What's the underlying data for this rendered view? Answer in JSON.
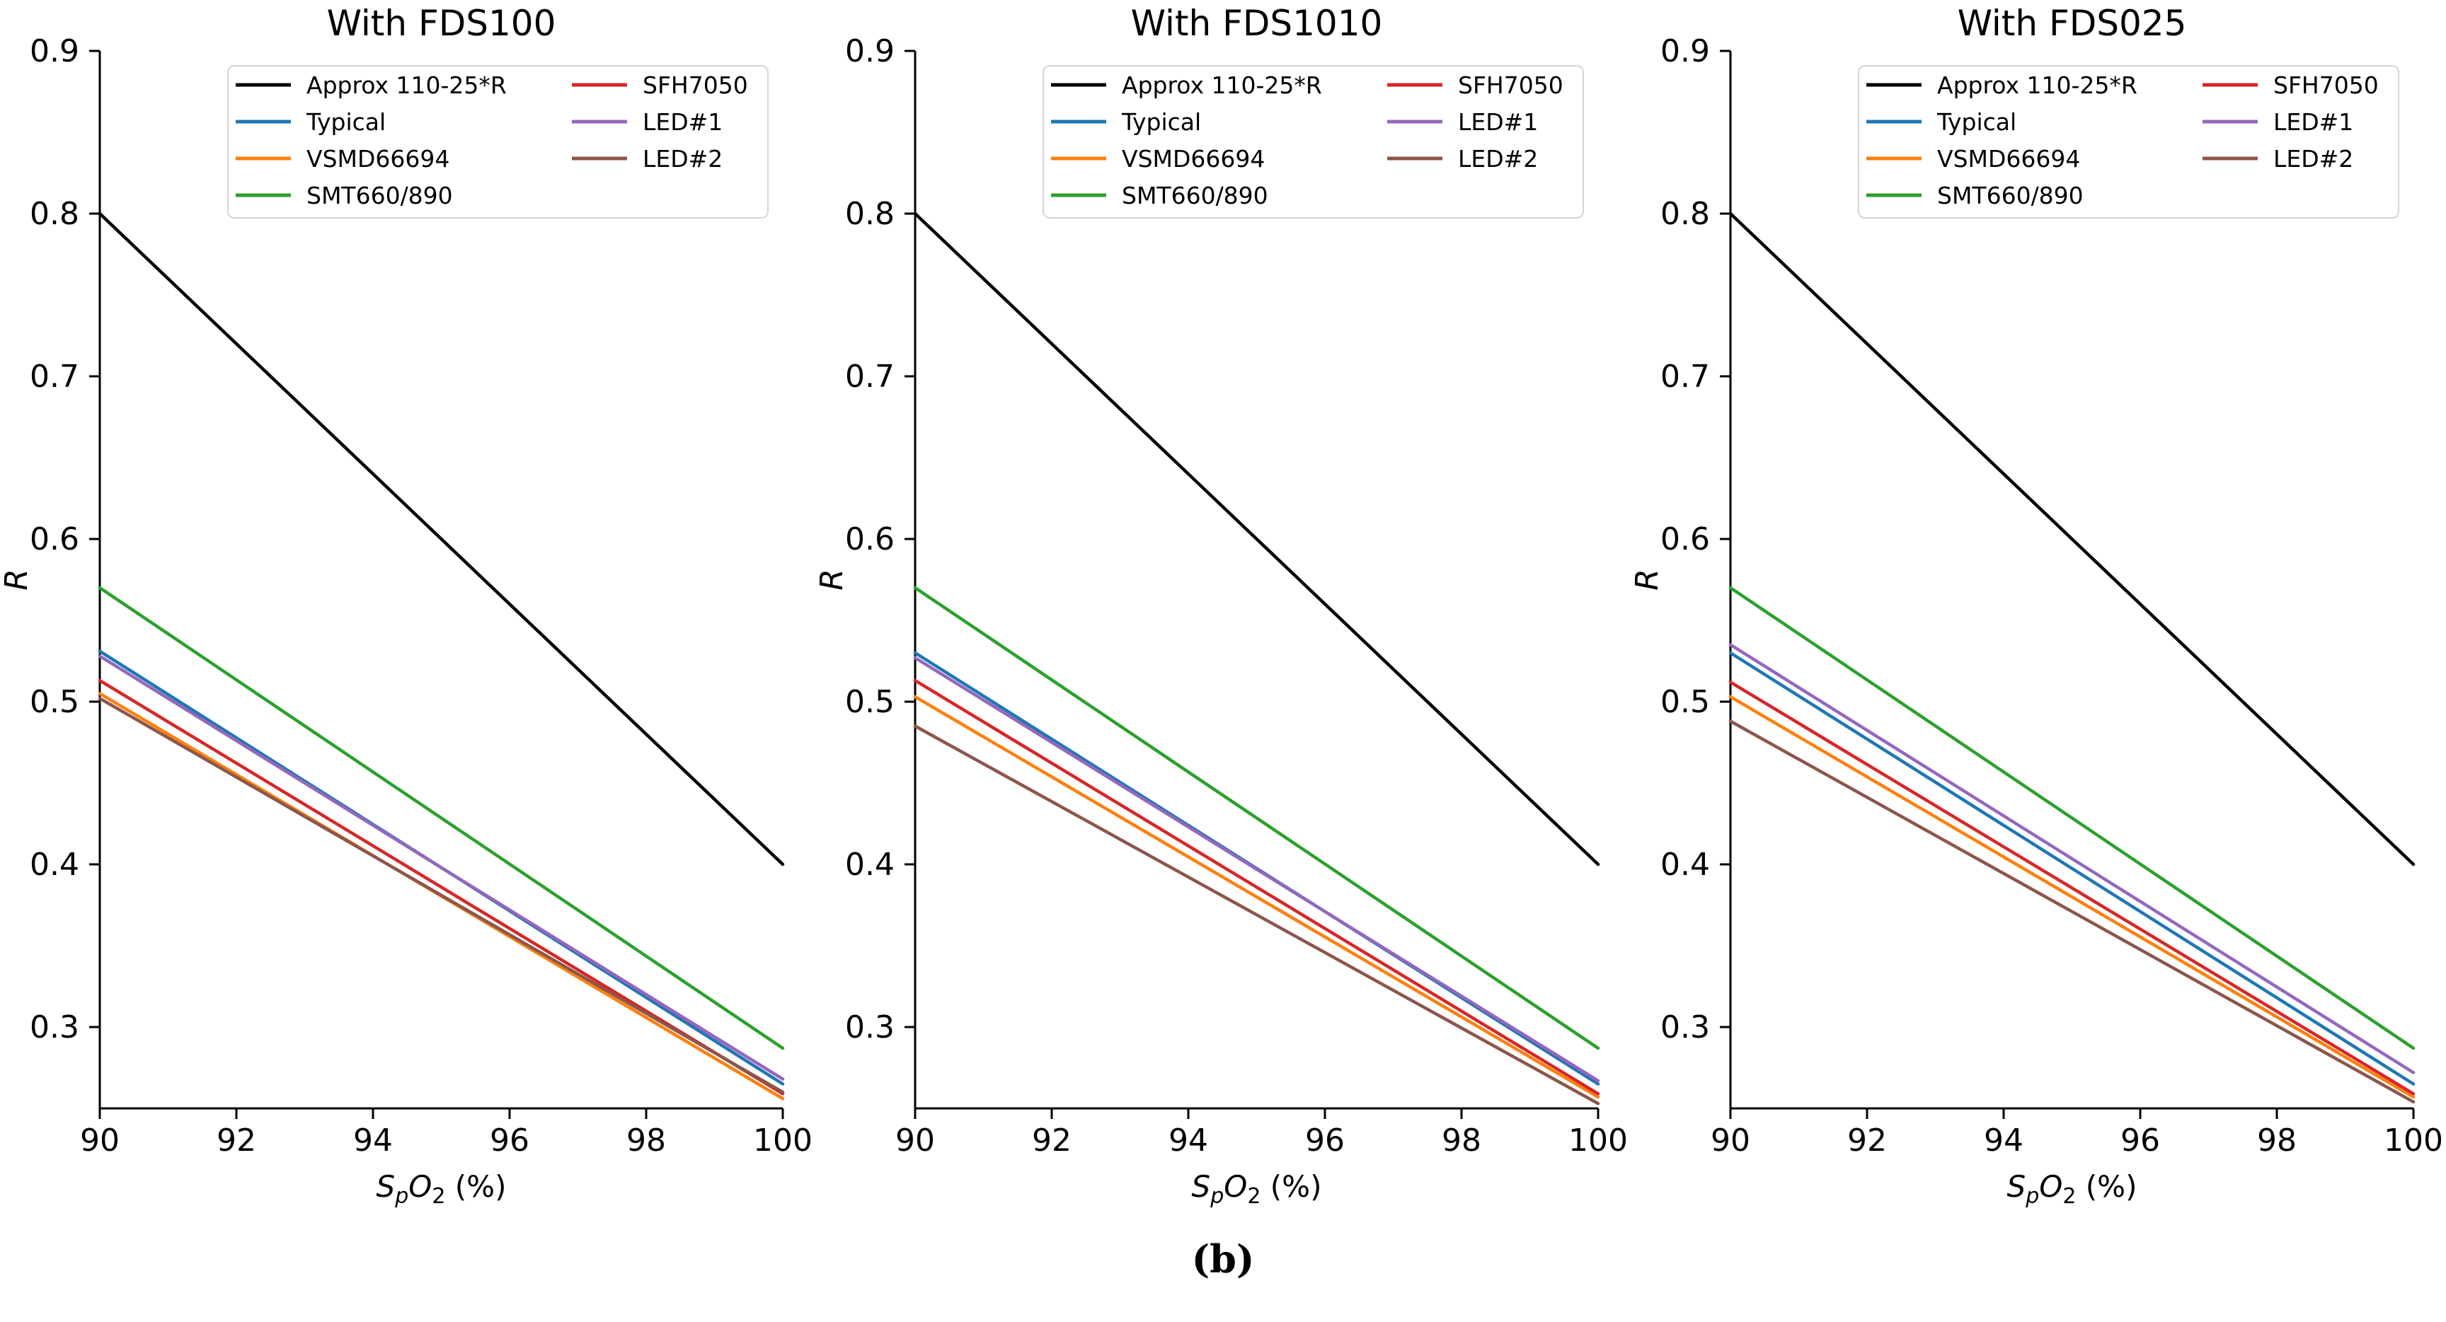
{
  "figure": {
    "caption": "(b)",
    "background": "#ffffff"
  },
  "axes_style": {
    "ylabel": "R",
    "xlabel_plain": "SpO2 (%)",
    "xlabel_parts": [
      {
        "t": "S",
        "italic": true
      },
      {
        "t": "p",
        "italic": true,
        "sub": true
      },
      {
        "t": "O",
        "italic": true
      },
      {
        "t": "2",
        "sub": true
      },
      {
        "t": " (%)"
      }
    ],
    "xlim": [
      90,
      100
    ],
    "ylim": [
      0.25,
      0.9
    ],
    "xticks": [
      "90",
      "92",
      "94",
      "96",
      "98",
      "100"
    ],
    "yticks": [
      "0.3",
      "0.4",
      "0.5",
      "0.6",
      "0.7",
      "0.8",
      "0.9"
    ],
    "grid": false,
    "legend": {
      "position": "upper center",
      "columns": 2,
      "border_color": "#d4d4d4"
    }
  },
  "chart_data": [
    {
      "type": "line",
      "title": "With FDS100",
      "xlabel": "SpO2 (%)",
      "ylabel": "R",
      "xlim": [
        90,
        100
      ],
      "ylim": [
        0.25,
        0.9
      ],
      "x": [
        90,
        100
      ],
      "legend_entries": [
        "Approx 110-25*R",
        "Typical",
        "VSMD66694",
        "SMT660/890",
        "SFH7050",
        "LED#1",
        "LED#2"
      ],
      "series": [
        {
          "name": "Approx 110-25*R",
          "color": "#000000",
          "y": [
            0.8,
            0.4
          ]
        },
        {
          "name": "Typical",
          "color": "#1f77b4",
          "y": [
            0.531,
            0.265
          ]
        },
        {
          "name": "VSMD66694",
          "color": "#ff7f0e",
          "y": [
            0.505,
            0.256
          ]
        },
        {
          "name": "SMT660/890",
          "color": "#2ca02c",
          "y": [
            0.57,
            0.287
          ]
        },
        {
          "name": "SFH7050",
          "color": "#d62728",
          "y": [
            0.513,
            0.259
          ]
        },
        {
          "name": "LED#1",
          "color": "#9467bd",
          "y": [
            0.528,
            0.268
          ]
        },
        {
          "name": "LED#2",
          "color": "#8c564b",
          "y": [
            0.502,
            0.26
          ]
        }
      ]
    },
    {
      "type": "line",
      "title": "With FDS1010",
      "xlabel": "SpO2 (%)",
      "ylabel": "R",
      "xlim": [
        90,
        100
      ],
      "ylim": [
        0.25,
        0.9
      ],
      "x": [
        90,
        100
      ],
      "legend_entries": [
        "Approx 110-25*R",
        "Typical",
        "VSMD66694",
        "SMT660/890",
        "SFH7050",
        "LED#1",
        "LED#2"
      ],
      "series": [
        {
          "name": "Approx 110-25*R",
          "color": "#000000",
          "y": [
            0.8,
            0.4
          ]
        },
        {
          "name": "Typical",
          "color": "#1f77b4",
          "y": [
            0.53,
            0.265
          ]
        },
        {
          "name": "VSMD66694",
          "color": "#ff7f0e",
          "y": [
            0.503,
            0.257
          ]
        },
        {
          "name": "SMT660/890",
          "color": "#2ca02c",
          "y": [
            0.57,
            0.287
          ]
        },
        {
          "name": "SFH7050",
          "color": "#d62728",
          "y": [
            0.513,
            0.259
          ]
        },
        {
          "name": "LED#1",
          "color": "#9467bd",
          "y": [
            0.527,
            0.267
          ]
        },
        {
          "name": "LED#2",
          "color": "#8c564b",
          "y": [
            0.485,
            0.253
          ]
        }
      ]
    },
    {
      "type": "line",
      "title": "With FDS025",
      "xlabel": "SpO2 (%)",
      "ylabel": "R",
      "xlim": [
        90,
        100
      ],
      "ylim": [
        0.25,
        0.9
      ],
      "x": [
        90,
        100
      ],
      "legend_entries": [
        "Approx 110-25*R",
        "Typical",
        "VSMD66694",
        "SMT660/890",
        "SFH7050",
        "LED#1",
        "LED#2"
      ],
      "series": [
        {
          "name": "Approx 110-25*R",
          "color": "#000000",
          "y": [
            0.8,
            0.4
          ]
        },
        {
          "name": "Typical",
          "color": "#1f77b4",
          "y": [
            0.53,
            0.265
          ]
        },
        {
          "name": "VSMD66694",
          "color": "#ff7f0e",
          "y": [
            0.503,
            0.257
          ]
        },
        {
          "name": "SMT660/890",
          "color": "#2ca02c",
          "y": [
            0.57,
            0.287
          ]
        },
        {
          "name": "SFH7050",
          "color": "#d62728",
          "y": [
            0.512,
            0.259
          ]
        },
        {
          "name": "LED#1",
          "color": "#9467bd",
          "y": [
            0.535,
            0.272
          ]
        },
        {
          "name": "LED#2",
          "color": "#8c564b",
          "y": [
            0.488,
            0.254
          ]
        }
      ]
    }
  ]
}
